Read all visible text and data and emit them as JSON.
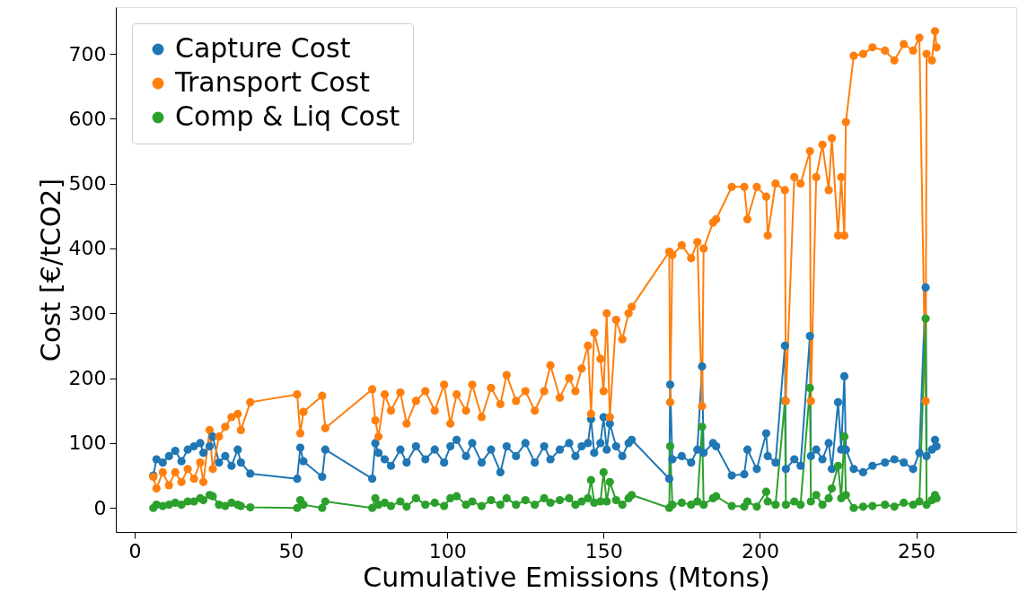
{
  "chart_data": {
    "type": "line",
    "xlabel": "Cumulative Emissions (Mtons)",
    "ylabel": "Cost [€/tCO2]",
    "x": [
      6,
      7,
      9,
      11,
      13,
      15,
      17,
      19,
      21,
      22,
      24,
      25,
      27,
      29,
      31,
      33,
      34,
      37,
      52,
      53,
      54,
      60,
      61,
      76,
      77,
      78,
      80,
      82,
      85,
      87,
      90,
      93,
      96,
      99,
      101,
      103,
      106,
      108,
      111,
      114,
      117,
      119,
      122,
      125,
      128,
      131,
      133,
      136,
      139,
      141,
      143,
      145,
      146,
      147,
      149,
      150,
      151,
      152,
      154,
      156,
      158,
      159,
      171,
      171.3,
      172,
      175,
      178,
      180,
      181.5,
      182,
      185,
      186,
      191,
      195,
      196,
      199,
      202,
      202.5,
      205,
      208,
      208.3,
      211,
      213,
      216,
      216.3,
      218,
      220,
      222,
      223,
      225,
      226,
      227,
      227.5,
      230,
      233,
      236,
      240,
      243,
      246,
      249,
      251,
      253,
      253.3,
      255,
      256,
      256.5
    ],
    "series": [
      {
        "name": "Capture Cost",
        "color": "#1f77b4",
        "values": [
          50,
          75,
          70,
          80,
          88,
          72,
          90,
          95,
          100,
          85,
          95,
          110,
          70,
          80,
          65,
          90,
          70,
          53,
          45,
          93,
          72,
          48,
          90,
          45,
          100,
          85,
          75,
          65,
          90,
          70,
          95,
          75,
          90,
          70,
          95,
          105,
          80,
          100,
          70,
          90,
          55,
          95,
          80,
          100,
          70,
          95,
          75,
          90,
          100,
          80,
          95,
          100,
          137,
          85,
          100,
          140,
          90,
          130,
          95,
          80,
          100,
          105,
          45,
          190,
          75,
          80,
          70,
          90,
          218,
          85,
          100,
          95,
          50,
          52,
          90,
          60,
          115,
          80,
          70,
          250,
          60,
          75,
          65,
          265,
          80,
          90,
          75,
          100,
          60,
          163,
          90,
          203,
          90,
          60,
          55,
          65,
          70,
          75,
          70,
          60,
          85,
          340,
          80,
          90,
          105,
          95
        ]
      },
      {
        "name": "Transport Cost",
        "color": "#ff7f0e",
        "values": [
          48,
          30,
          55,
          35,
          55,
          40,
          60,
          45,
          70,
          40,
          120,
          60,
          110,
          125,
          140,
          145,
          120,
          163,
          175,
          115,
          148,
          173,
          123,
          183,
          135,
          110,
          175,
          150,
          178,
          130,
          165,
          180,
          150,
          190,
          130,
          175,
          150,
          190,
          140,
          185,
          160,
          205,
          165,
          180,
          150,
          180,
          220,
          170,
          200,
          180,
          215,
          250,
          145,
          270,
          230,
          180,
          300,
          140,
          290,
          260,
          300,
          310,
          395,
          163,
          390,
          405,
          385,
          410,
          157,
          400,
          440,
          445,
          495,
          495,
          445,
          495,
          480,
          420,
          500,
          490,
          165,
          510,
          500,
          550,
          165,
          510,
          560,
          490,
          570,
          420,
          510,
          420,
          595,
          697,
          700,
          710,
          705,
          690,
          715,
          705,
          725,
          165,
          700,
          690,
          735,
          710
        ]
      },
      {
        "name": "Comp & Liq Cost",
        "color": "#2ca02c",
        "values": [
          0,
          5,
          3,
          5,
          8,
          5,
          10,
          10,
          15,
          12,
          20,
          18,
          5,
          3,
          8,
          5,
          3,
          1,
          0,
          12,
          5,
          0,
          10,
          0,
          15,
          5,
          8,
          3,
          10,
          2,
          15,
          5,
          8,
          3,
          15,
          18,
          5,
          10,
          3,
          12,
          5,
          15,
          5,
          12,
          5,
          15,
          8,
          12,
          15,
          5,
          10,
          15,
          43,
          8,
          10,
          55,
          10,
          40,
          12,
          5,
          15,
          20,
          0,
          95,
          5,
          8,
          5,
          10,
          125,
          5,
          15,
          18,
          3,
          2,
          10,
          2,
          25,
          10,
          5,
          165,
          5,
          10,
          5,
          185,
          10,
          20,
          5,
          15,
          30,
          65,
          15,
          110,
          20,
          0,
          2,
          3,
          5,
          2,
          8,
          5,
          10,
          292,
          5,
          12,
          20,
          15
        ]
      }
    ],
    "xlim": [
      -6,
      282
    ],
    "ylim": [
      -37,
      772
    ],
    "xticks": [
      0,
      50,
      100,
      150,
      200,
      250
    ],
    "yticks": [
      0,
      100,
      200,
      300,
      400,
      500,
      600,
      700
    ],
    "grid": false,
    "legend": "top left",
    "marker": "circle",
    "line_style": "solid"
  }
}
